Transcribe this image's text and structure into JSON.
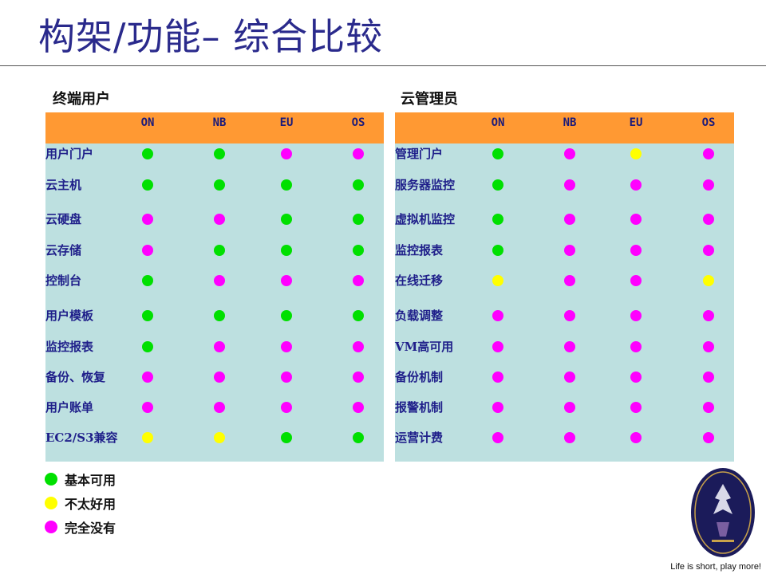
{
  "title": "构架/功能– 综合比较",
  "colors": {
    "good": "#00e000",
    "fair": "#ffff00",
    "none": "#ff00ff",
    "header": "#ff9933",
    "panel": "#bde0e0"
  },
  "columns": [
    "ON",
    "NB",
    "EU",
    "OS"
  ],
  "left": {
    "heading": "终端用户",
    "rows": [
      {
        "label": "用户门户",
        "status": [
          "good",
          "good",
          "none",
          "none"
        ]
      },
      {
        "label": "云主机",
        "status": [
          "good",
          "good",
          "good",
          "good"
        ]
      },
      {
        "label": "云硬盘",
        "status": [
          "none",
          "none",
          "good",
          "good"
        ]
      },
      {
        "label": "云存储",
        "status": [
          "none",
          "good",
          "good",
          "good"
        ]
      },
      {
        "label": "控制台",
        "status": [
          "good",
          "none",
          "none",
          "none"
        ]
      },
      {
        "label": "用户模板",
        "status": [
          "good",
          "good",
          "good",
          "good"
        ]
      },
      {
        "label": "监控报表",
        "status": [
          "good",
          "none",
          "none",
          "none"
        ]
      },
      {
        "label": "备份、恢复",
        "status": [
          "none",
          "none",
          "none",
          "none"
        ]
      },
      {
        "label": "用户账单",
        "status": [
          "none",
          "none",
          "none",
          "none"
        ]
      },
      {
        "label": "EC2/S3兼容",
        "status": [
          "fair",
          "fair",
          "good",
          "good"
        ]
      }
    ]
  },
  "right": {
    "heading": "云管理员",
    "rows": [
      {
        "label": "管理门户",
        "status": [
          "good",
          "none",
          "fair",
          "none"
        ]
      },
      {
        "label": "服务器监控",
        "status": [
          "good",
          "none",
          "none",
          "none"
        ]
      },
      {
        "label": "虚拟机监控",
        "status": [
          "good",
          "none",
          "none",
          "none"
        ]
      },
      {
        "label": "监控报表",
        "status": [
          "good",
          "none",
          "none",
          "none"
        ]
      },
      {
        "label": "在线迁移",
        "status": [
          "fair",
          "none",
          "none",
          "fair"
        ]
      },
      {
        "label": "负载调整",
        "status": [
          "none",
          "none",
          "none",
          "none"
        ]
      },
      {
        "label": "VM高可用",
        "status": [
          "none",
          "none",
          "none",
          "none"
        ]
      },
      {
        "label": "备份机制",
        "status": [
          "none",
          "none",
          "none",
          "none"
        ]
      },
      {
        "label": "报警机制",
        "status": [
          "none",
          "none",
          "none",
          "none"
        ]
      },
      {
        "label": "运营计费",
        "status": [
          "none",
          "none",
          "none",
          "none"
        ]
      }
    ]
  },
  "legend": [
    {
      "key": "good",
      "label": "基本可用"
    },
    {
      "key": "fair",
      "label": "不太好用"
    },
    {
      "key": "none",
      "label": "完全没有"
    }
  ],
  "tagline": "Life is short, play more!"
}
